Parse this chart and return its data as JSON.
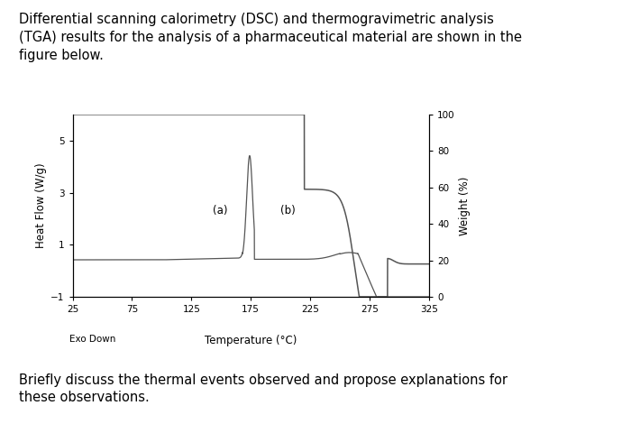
{
  "xlim": [
    25,
    325
  ],
  "ylim_left": [
    -1,
    6
  ],
  "ylim_right": [
    0,
    100
  ],
  "xticks": [
    25,
    75,
    125,
    175,
    225,
    275,
    325
  ],
  "yticks_left": [
    -1,
    1,
    3,
    5
  ],
  "yticks_right": [
    0,
    20,
    40,
    60,
    80,
    100
  ],
  "xlabel": "Temperature (°C)",
  "ylabel_left": "Heat Flow (W/g)",
  "ylabel_right": "Weight (%)",
  "exo_label": "Exo Down",
  "annotation_a": "(a)",
  "annotation_b": "(b)",
  "title_text": "Differential scanning calorimetry (DSC) and thermogravimetric analysis\n(TGA) results for the analysis of a pharmaceutical material are shown in the\nfigure below.",
  "footer_text": "Briefly discuss the thermal events observed and propose explanations for\nthese observations.",
  "line_color": "#555555",
  "bg_color": "#ffffff",
  "plot_bg": "#ffffff",
  "title_fontsize": 10.5,
  "axis_fontsize": 8.5,
  "tick_fontsize": 7.5
}
